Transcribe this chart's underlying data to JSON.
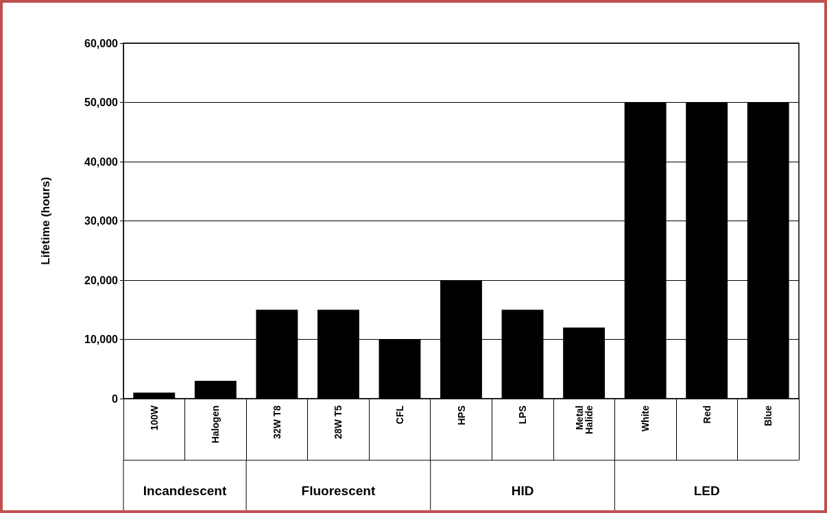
{
  "chart_data": {
    "type": "bar",
    "ylabel": "Lifetime (hours)",
    "categories": [
      "100W",
      "Halogen",
      "32W T8",
      "28W T5",
      "CFL",
      "HPS",
      "LPS",
      "Metal Halide",
      "White",
      "Red",
      "Blue"
    ],
    "values": [
      1000,
      3000,
      15000,
      15000,
      10000,
      20000,
      15000,
      12000,
      50000,
      50000,
      50000
    ],
    "color": "#000000",
    "ylim": [
      0,
      60000
    ],
    "yticks": [
      {
        "value": 0,
        "label": "0"
      },
      {
        "value": 10000,
        "label": "10,000"
      },
      {
        "value": 20000,
        "label": "20,000"
      },
      {
        "value": 30000,
        "label": "30,000"
      },
      {
        "value": 40000,
        "label": "40,000"
      },
      {
        "value": 50000,
        "label": "50,000"
      },
      {
        "value": 60000,
        "label": "60,000"
      }
    ],
    "grid": "y",
    "annotations": [
      "Incandescent",
      "Fluorescent",
      "HID",
      "LED"
    ]
  }
}
